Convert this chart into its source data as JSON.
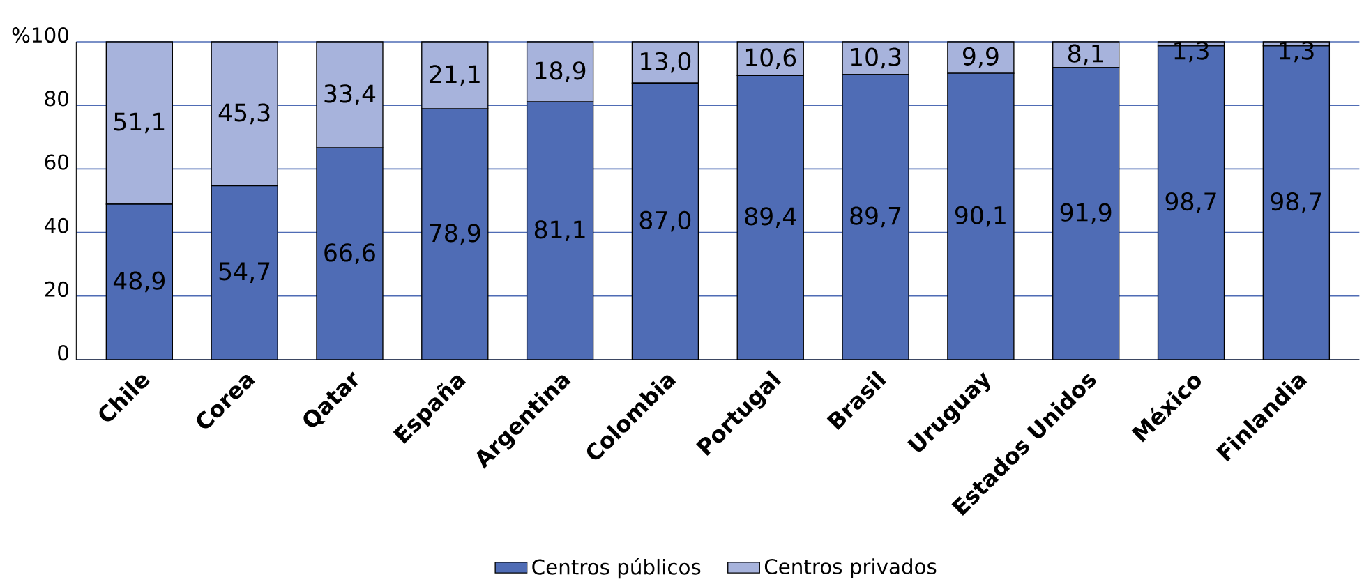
{
  "chart_data": {
    "type": "bar",
    "stacked": true,
    "categories": [
      "Chile",
      "Corea",
      "Qatar",
      "España",
      "Argentina",
      "Colombia",
      "Portugal",
      "Brasil",
      "Uruguay",
      "Estados Unidos",
      "México",
      "Finlandia"
    ],
    "series": [
      {
        "name": "Centros públicos",
        "color": "#4f6cb5",
        "values": [
          48.9,
          54.7,
          66.6,
          78.9,
          81.1,
          87.0,
          89.4,
          89.7,
          90.1,
          91.9,
          98.7,
          98.7
        ],
        "value_labels": [
          "48,9",
          "54,7",
          "66,6",
          "78,9",
          "81,1",
          "87,0",
          "89,4",
          "89,7",
          "90,1",
          "91,9",
          "98,7",
          "98,7"
        ]
      },
      {
        "name": "Centros privados",
        "color": "#a7b3dc",
        "values": [
          51.1,
          45.3,
          33.4,
          21.1,
          18.9,
          13.0,
          10.6,
          10.3,
          9.9,
          8.1,
          1.3,
          1.3
        ],
        "value_labels": [
          "51,1",
          "45,3",
          "33,4",
          "21,1",
          "18,9",
          "13,0",
          "10,6",
          "10,3",
          "9,9",
          "8,1",
          "1,3",
          "1,3"
        ]
      }
    ],
    "ylim": [
      0,
      100
    ],
    "yticks": [
      0,
      20,
      40,
      60,
      80,
      {
        "value": 100,
        "label": "%100"
      }
    ],
    "grid": "y",
    "legend": "bottom"
  }
}
